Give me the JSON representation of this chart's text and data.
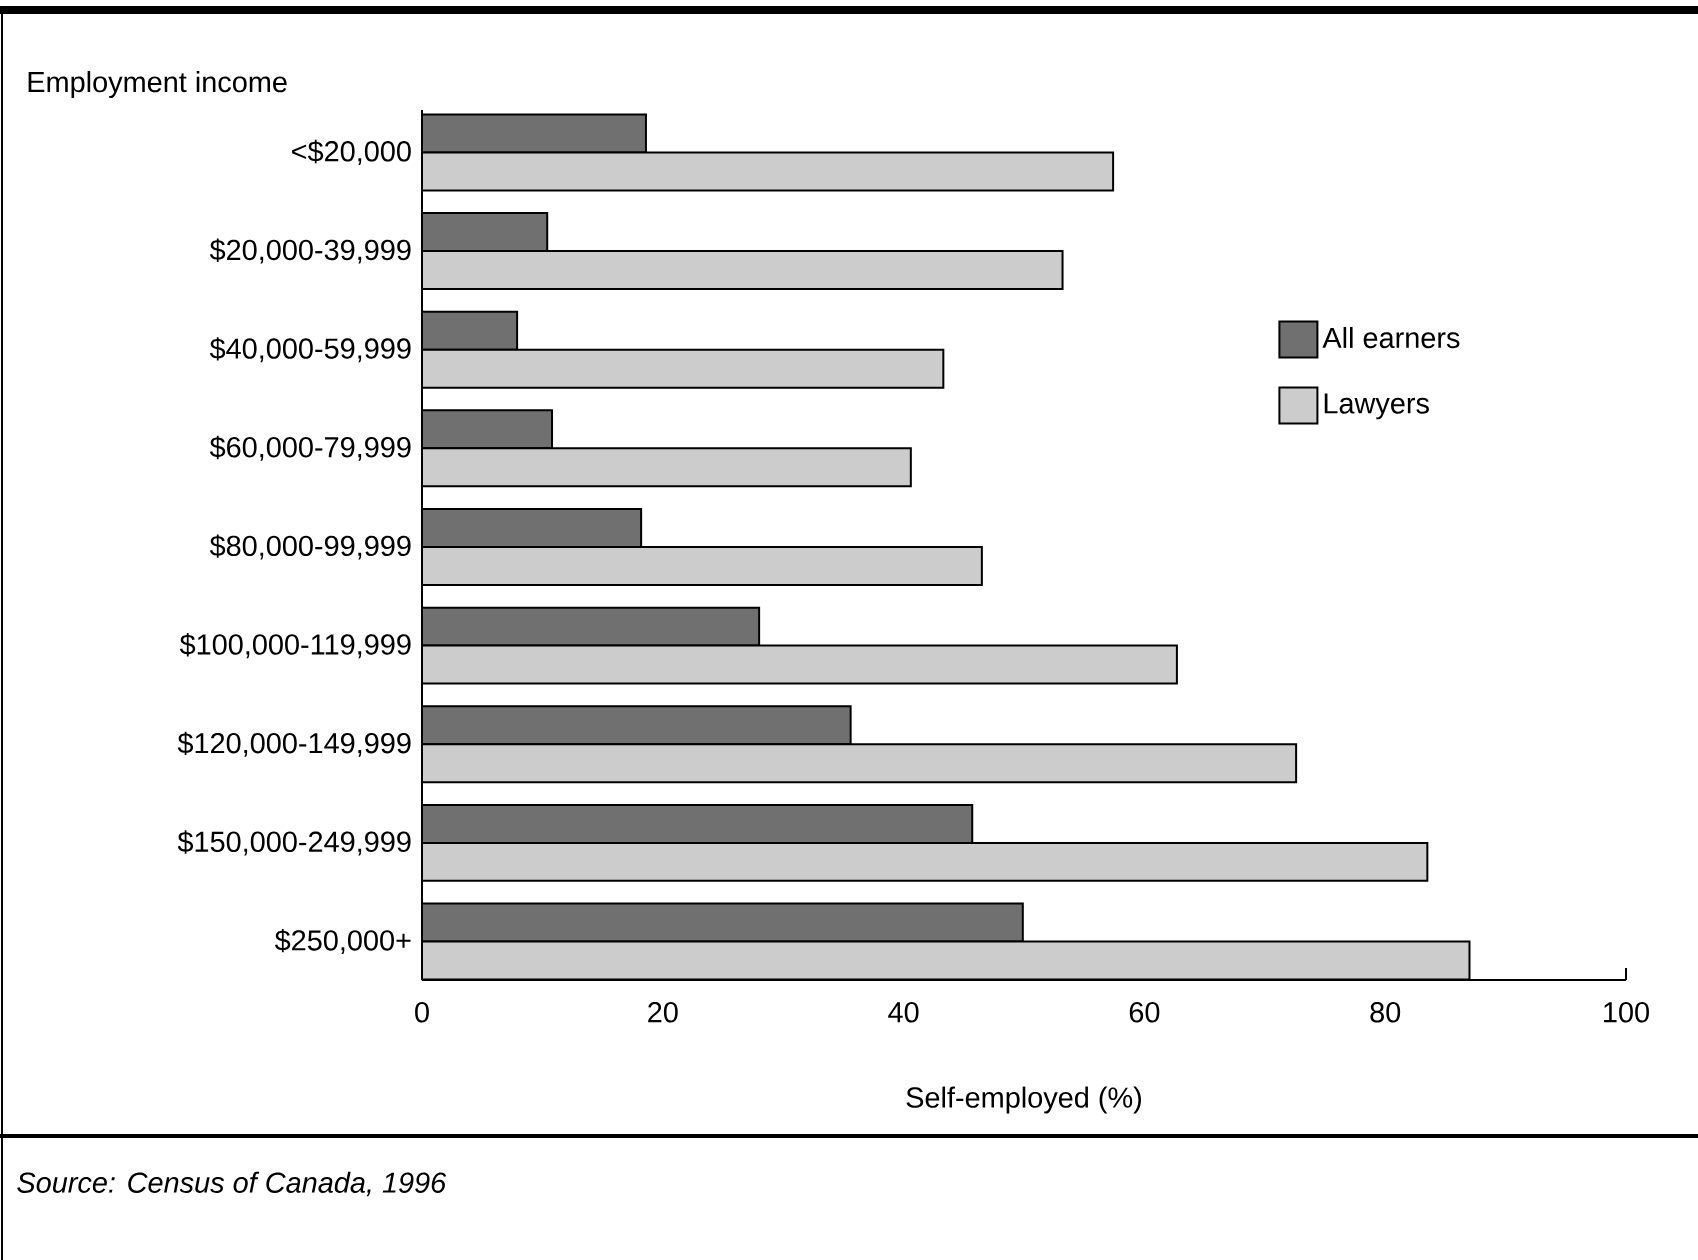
{
  "chart_data": {
    "type": "bar",
    "orientation": "horizontal",
    "ylabel": "Employment income",
    "xlabel": "Self-employed (%)",
    "categories": [
      "<$20,000",
      "$20,000-39,999",
      "$40,000-59,999",
      "$60,000-79,999",
      "$80,000-99,999",
      "$100,000-119,999",
      "$120,000-149,999",
      "$150,000-249,999",
      "$250,000+"
    ],
    "series": [
      {
        "name": "All earners",
        "color": "#707070",
        "values": [
          18.6,
          10.4,
          7.9,
          10.8,
          18.2,
          28.0,
          35.6,
          45.7,
          49.9
        ]
      },
      {
        "name": "Lawyers",
        "color": "#cccccc",
        "values": [
          57.4,
          53.2,
          43.3,
          40.6,
          46.5,
          62.7,
          72.6,
          83.5,
          87.0
        ]
      }
    ],
    "xlim": [
      0,
      100
    ],
    "xticks": [
      0,
      20,
      40,
      60,
      80,
      100
    ],
    "legend": "right",
    "annotations": [
      "Source: Census of Canada, 1996"
    ]
  }
}
